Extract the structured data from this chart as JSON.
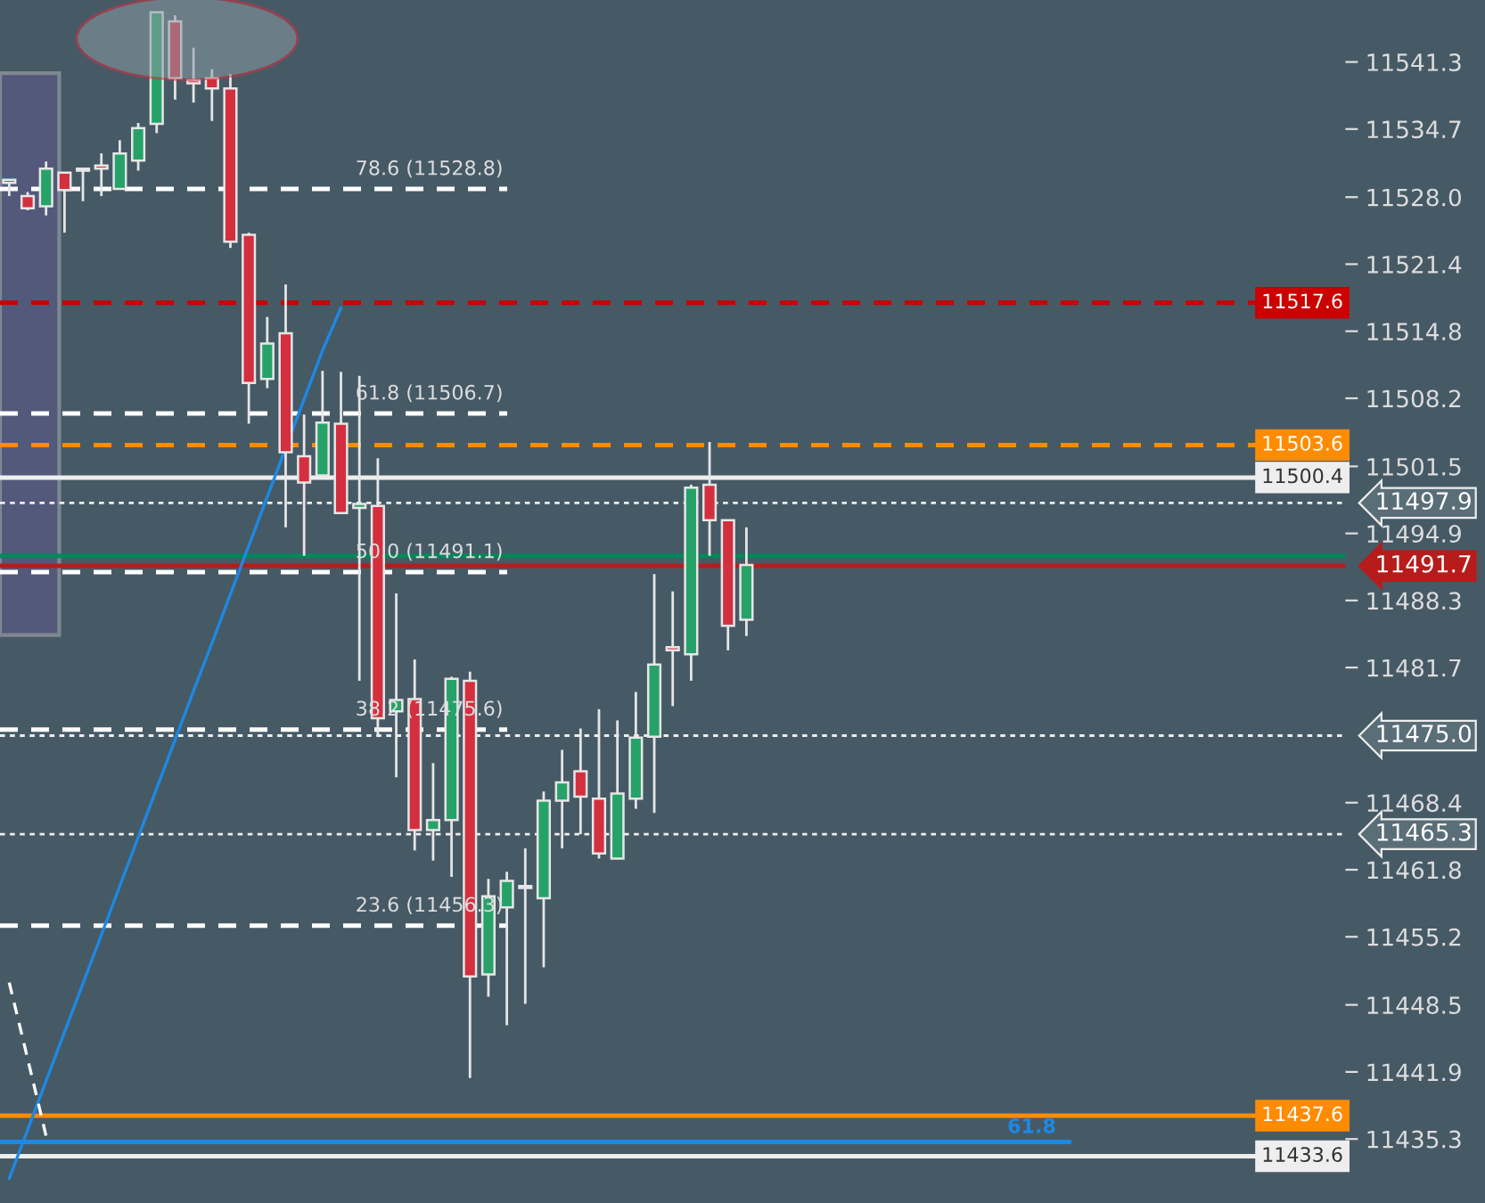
{
  "chart_data": {
    "type": "candlestick",
    "categories": [
      null,
      null,
      null,
      null,
      null,
      null,
      null,
      null,
      null,
      null,
      null,
      null,
      null,
      null,
      null,
      null,
      null,
      null,
      null,
      null,
      null,
      null,
      null,
      null,
      null,
      null,
      null,
      null,
      null,
      null,
      null,
      null,
      null,
      null,
      null,
      null,
      null,
      null,
      null,
      null,
      null,
      null,
      null,
      null,
      null,
      null,
      null,
      null,
      null,
      null,
      null,
      null,
      null,
      null,
      null,
      null,
      null,
      null,
      null,
      null,
      null,
      null,
      null,
      null,
      null,
      null,
      null,
      null,
      null,
      null,
      null,
      null,
      null
    ],
    "ohlc": [
      [
        11529.4,
        11529.7,
        11528.1,
        11529.7
      ],
      [
        11528.1,
        11528.5,
        11526.7,
        11526.9
      ],
      [
        11527.1,
        11531.5,
        11526.2,
        11530.8
      ],
      [
        11530.4,
        11530.4,
        11524.5,
        11528.7
      ],
      [
        11530.8,
        11530.8,
        11527.6,
        11530.6
      ],
      [
        11531.1,
        11532.3,
        11528.1,
        11530.8
      ],
      [
        11528.8,
        11533.6,
        11528.8,
        11532.3
      ],
      [
        11531.6,
        11535.3,
        11530.6,
        11534.8
      ],
      [
        11535.2,
        11546.2,
        11534.3,
        11546.2
      ],
      [
        11545.3,
        11545.9,
        11537.6,
        11539.7
      ],
      [
        11539.5,
        11542.7,
        11537.3,
        11539.2
      ],
      [
        11539.7,
        11540.6,
        11535.5,
        11538.7
      ],
      [
        11538.7,
        11540.1,
        11523.0,
        11523.6
      ],
      [
        11524.3,
        11524.5,
        11505.7,
        11509.7
      ],
      [
        11510.1,
        11516.2,
        11509.2,
        11513.6
      ],
      [
        11514.6,
        11519.4,
        11495.5,
        11502.9
      ],
      [
        11502.5,
        11506.6,
        11492.7,
        11499.9
      ],
      [
        11500.6,
        11510.9,
        11500.6,
        11505.8
      ],
      [
        11505.7,
        11510.8,
        11496.9,
        11496.9
      ],
      [
        11497.4,
        11510.4,
        11480.4,
        11497.8
      ],
      [
        11497.6,
        11502.3,
        11475.1,
        11476.7
      ],
      [
        11477.4,
        11489.0,
        11470.9,
        11478.5
      ],
      [
        11478.6,
        11482.5,
        11463.7,
        11465.7
      ],
      [
        11465.7,
        11472.3,
        11462.7,
        11466.7
      ],
      [
        11466.7,
        11480.8,
        11461.1,
        11480.6
      ],
      [
        11480.4,
        11481.3,
        11441.3,
        11451.3
      ],
      [
        11451.5,
        11460.9,
        11449.3,
        11459.2
      ],
      [
        11458.1,
        11461.6,
        11446.5,
        11460.7
      ],
      [
        11460.2,
        11463.9,
        11448.6,
        11460.0
      ],
      [
        11459.0,
        11469.5,
        11452.2,
        11468.6
      ],
      [
        11468.6,
        11473.6,
        11463.9,
        11470.4
      ],
      [
        11471.5,
        11475.7,
        11465.3,
        11469.0
      ],
      [
        11468.8,
        11477.6,
        11462.9,
        11463.4
      ],
      [
        11462.9,
        11476.5,
        11462.9,
        11469.3
      ],
      [
        11468.8,
        11479.3,
        11467.8,
        11474.8
      ],
      [
        11474.9,
        11490.9,
        11467.4,
        11482.0
      ],
      [
        11483.7,
        11489.2,
        11477.9,
        11483.4
      ],
      [
        11483.0,
        11499.7,
        11480.4,
        11499.4
      ],
      [
        11499.7,
        11503.9,
        11492.7,
        11496.2
      ],
      [
        11496.2,
        11496.2,
        11483.4,
        11485.8
      ],
      [
        11486.4,
        11495.5,
        11484.8,
        11491.8
      ],
      null,
      null,
      null,
      null,
      null,
      null,
      null,
      null,
      null,
      null,
      null,
      null,
      null,
      null,
      null,
      null,
      null,
      null,
      null,
      null,
      null,
      null,
      null,
      null,
      null,
      null,
      null,
      null,
      null,
      null,
      null,
      null
    ],
    "colors": [
      "#26a269",
      "#d32f3f",
      "#26a269",
      "#d32f3f",
      "#d32f3f",
      "#d32f3f",
      "#26a269",
      "#26a269",
      "#26a269",
      "#d32f3f",
      "#d32f3f",
      "#d32f3f",
      "#d32f3f",
      "#d32f3f",
      "#26a269",
      "#d32f3f",
      "#d32f3f",
      "#26a269",
      "#d32f3f",
      "#26a269",
      "#d32f3f",
      "#26a269",
      "#d32f3f",
      "#26a269",
      "#26a269",
      "#d32f3f",
      "#26a269",
      "#26a269",
      "#d32f3f",
      "#26a269",
      "#26a269",
      "#d32f3f",
      "#d32f3f",
      "#26a269",
      "#26a269",
      "#26a269",
      "#d32f3f",
      "#26a269",
      "#d32f3f",
      "#d32f3f",
      "#26a269",
      null,
      null,
      null,
      null,
      null,
      null,
      null,
      null,
      null,
      null,
      null,
      null,
      null,
      null,
      null,
      null,
      null,
      null,
      null,
      null,
      null,
      null,
      null,
      null,
      null,
      null,
      null,
      null,
      null,
      null,
      null,
      null
    ],
    "series": [
      {
        "type": "line",
        "values": [
          11431.4,
          11436.2,
          11441.0,
          11445.8,
          11450.6,
          11455.4,
          11460.2,
          11465.0,
          11469.8,
          11474.6,
          11479.4,
          11484.1,
          11488.9,
          11493.7,
          11498.5,
          11503.3,
          11508.1,
          11512.9,
          11517.1,
          null,
          null,
          null,
          null,
          null,
          null,
          null,
          null,
          null,
          null,
          null,
          null,
          null,
          null,
          null,
          null,
          null,
          null,
          null,
          null,
          null,
          null,
          null,
          null,
          null,
          null,
          null,
          null,
          null,
          null,
          null,
          null,
          null,
          null,
          null,
          null,
          null,
          null,
          null,
          null,
          null,
          null,
          null,
          null,
          null,
          null,
          null,
          null,
          null,
          null,
          null,
          null,
          null,
          null
        ],
        "color": "#1e88e5",
        "line_style": "solid"
      },
      {
        "type": "line",
        "values": [
          11450.7,
          11443.2,
          11435.6,
          null,
          null,
          null,
          null,
          null,
          null,
          null,
          null,
          null,
          null,
          null,
          null,
          null,
          null,
          null,
          null,
          null,
          null,
          null,
          null,
          null,
          null,
          null,
          null,
          null,
          null,
          null,
          null,
          null,
          null,
          null,
          null,
          null,
          null,
          null,
          null,
          null,
          null,
          null,
          null,
          null,
          null,
          null,
          null,
          null,
          null,
          null,
          null,
          null,
          null,
          null,
          null,
          null,
          null,
          null,
          null,
          null,
          null,
          null,
          null,
          null,
          null,
          null,
          null,
          null,
          null,
          null,
          null,
          null,
          null
        ],
        "color": "#ffffff",
        "line_style": "dashed"
      }
    ],
    "annotations": [
      "61.8"
    ],
    "ylim": [
      11429.0,
      11547.4
    ],
    "yticks": [
      11541.3,
      11534.7,
      {
        "value": 11528.0,
        "label": "11528.0"
      },
      11521.4,
      11514.8,
      11508.2,
      11501.5,
      11494.9,
      11488.3,
      11481.7,
      11468.4,
      11461.8,
      11455.2,
      11448.5,
      11441.9,
      11435.3
    ],
    "tick_labels": "y",
    "bands": [
      {
        "axis": "y",
        "from": 11484.9,
        "to": 11540.2,
        "color": "#56597f"
      }
    ],
    "ref_lines": [
      {
        "axis": "y",
        "value": 11528.8,
        "label": "78.6 (11528.8)",
        "color": "#ffffff",
        "line_style": "dashed"
      },
      {
        "axis": "y",
        "value": 11506.7,
        "label": "61.8 (11506.7)",
        "color": "#ffffff",
        "line_style": "dashed"
      },
      {
        "axis": "y",
        "value": 11491.1,
        "label": "50.0 (11491.1)",
        "color": "#ffffff",
        "line_style": "dashed"
      },
      {
        "axis": "y",
        "value": 11475.6,
        "label": "38.2 (11475.6)",
        "color": "#ffffff",
        "line_style": "dashed"
      },
      {
        "axis": "y",
        "value": 11456.3,
        "label": "23.6 (11456.3)",
        "color": "#ffffff",
        "line_style": "dashed"
      },
      {
        "axis": "y",
        "value": 11517.6,
        "label": "11517.6",
        "color": "#cc0000",
        "line_style": "dashed"
      },
      {
        "axis": "y",
        "value": 11503.6,
        "label": "11503.6",
        "color": "#ff8c00",
        "line_style": "dashed"
      },
      {
        "axis": "y",
        "value": 11500.4,
        "label": "11500.4",
        "color": "#eeeeee",
        "line_style": "solid"
      },
      {
        "axis": "y",
        "value": 11497.9,
        "label": "11497.9",
        "color": "#eeeeee",
        "line_style": "dotted"
      },
      {
        "axis": "y",
        "value": 11492.7,
        "color": "#00875a",
        "line_style": "solid"
      },
      {
        "axis": "y",
        "value": 11491.7,
        "label": "11491.7",
        "color": "#b71c1c",
        "line_style": "solid"
      },
      {
        "axis": "y",
        "value": 11475.0,
        "label": "11475.0",
        "color": "#eeeeee",
        "line_style": "dotted"
      },
      {
        "axis": "y",
        "value": 11465.3,
        "label": "11465.3",
        "color": "#eeeeee",
        "line_style": "dotted"
      },
      {
        "axis": "y",
        "value": 11437.6,
        "label": "11437.6",
        "color": "#ff8c00",
        "line_style": "solid"
      },
      {
        "axis": "y",
        "value": 11435.0,
        "color": "#1e88e5",
        "line_style": "solid"
      },
      {
        "axis": "y",
        "value": 11433.6,
        "label": "11433.6",
        "color": "#eeeeee",
        "line_style": "solid"
      }
    ],
    "grid": false,
    "legend": false
  }
}
